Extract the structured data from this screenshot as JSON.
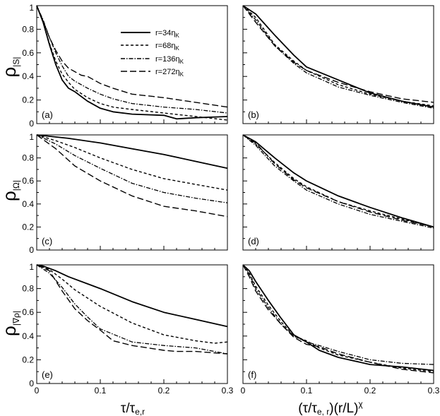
{
  "x_ticks": [
    "0",
    "0.1",
    "0.2",
    "0.3"
  ],
  "y_ticks": [
    "0",
    "0.2",
    "0.4",
    "0.6",
    "0.8",
    "1"
  ],
  "xlabel_left": {
    "main": "τ/τ",
    "sub": "e,r"
  },
  "xlabel_right": {
    "main": "(τ/τ",
    "sub": "e, r",
    "tail": ")(r/L)",
    "sup": "χ"
  },
  "row_ylabels": [
    {
      "main": "ρ",
      "sub": "|S|"
    },
    {
      "main": "ρ",
      "sub": "|Ω|"
    },
    {
      "main": "ρ",
      "sub": "|∇ρ|"
    }
  ],
  "legend": {
    "location": "top-right of panel (a)",
    "entries": [
      {
        "label": "r=34η",
        "sub": "K",
        "dash": "solid"
      },
      {
        "label": "r=68η",
        "sub": "K",
        "dash": "dash"
      },
      {
        "label": "r=136η",
        "sub": "K",
        "dash": "dashdot"
      },
      {
        "label": "r=272η",
        "sub": "K",
        "dash": "longdash"
      }
    ]
  },
  "chart_data": [
    {
      "type": "line",
      "panel": "(a)",
      "xlim": [
        0,
        0.3
      ],
      "ylim": [
        0,
        1
      ],
      "xlabel": "τ/τe,r",
      "ylabel": "ρ|S|",
      "series": [
        {
          "name": "r=34ηK",
          "x": [
            0,
            0.01,
            0.02,
            0.03,
            0.04,
            0.05,
            0.06,
            0.08,
            0.1,
            0.12,
            0.15,
            0.2,
            0.22,
            0.25,
            0.3
          ],
          "y": [
            1,
            0.86,
            0.67,
            0.5,
            0.37,
            0.3,
            0.27,
            0.19,
            0.13,
            0.1,
            0.08,
            0.07,
            0.04,
            0.05,
            0.06
          ]
        },
        {
          "name": "r=68ηK",
          "x": [
            0,
            0.01,
            0.02,
            0.03,
            0.04,
            0.05,
            0.06,
            0.08,
            0.1,
            0.12,
            0.15,
            0.2,
            0.25,
            0.3
          ],
          "y": [
            1,
            0.86,
            0.68,
            0.53,
            0.42,
            0.35,
            0.29,
            0.22,
            0.17,
            0.14,
            0.12,
            0.09,
            0.06,
            0.03
          ]
        },
        {
          "name": "r=136ηK",
          "x": [
            0,
            0.01,
            0.02,
            0.03,
            0.04,
            0.05,
            0.06,
            0.08,
            0.1,
            0.12,
            0.15,
            0.2,
            0.25,
            0.3
          ],
          "y": [
            1,
            0.88,
            0.73,
            0.6,
            0.49,
            0.4,
            0.36,
            0.3,
            0.25,
            0.21,
            0.17,
            0.14,
            0.12,
            0.09
          ]
        },
        {
          "name": "r=272ηK",
          "x": [
            0,
            0.01,
            0.02,
            0.03,
            0.04,
            0.05,
            0.06,
            0.07,
            0.08,
            0.1,
            0.12,
            0.15,
            0.2,
            0.25,
            0.3
          ],
          "y": [
            1,
            0.87,
            0.73,
            0.62,
            0.53,
            0.47,
            0.44,
            0.41,
            0.4,
            0.34,
            0.3,
            0.25,
            0.22,
            0.18,
            0.14
          ]
        }
      ]
    },
    {
      "type": "line",
      "panel": "(b)",
      "xlim": [
        0,
        0.3
      ],
      "ylim": [
        0,
        1
      ],
      "xlabel": "(τ/τe, r)(r/L)χ",
      "ylabel": "ρ|S|",
      "series": [
        {
          "name": "r=34ηK",
          "x": [
            0,
            0.02,
            0.05,
            0.08,
            0.1,
            0.15,
            0.2,
            0.25,
            0.3
          ],
          "y": [
            1,
            0.93,
            0.75,
            0.58,
            0.48,
            0.37,
            0.26,
            0.19,
            0.14
          ]
        },
        {
          "name": "r=68ηK",
          "x": [
            0,
            0.02,
            0.05,
            0.08,
            0.1,
            0.15,
            0.2,
            0.25,
            0.3
          ],
          "y": [
            1,
            0.9,
            0.67,
            0.53,
            0.45,
            0.33,
            0.25,
            0.19,
            0.15
          ]
        },
        {
          "name": "r=136ηK",
          "x": [
            0,
            0.02,
            0.05,
            0.08,
            0.1,
            0.15,
            0.2,
            0.25,
            0.3
          ],
          "y": [
            1,
            0.88,
            0.66,
            0.51,
            0.43,
            0.31,
            0.24,
            0.18,
            0.13
          ]
        },
        {
          "name": "r=272ηK",
          "x": [
            0,
            0.02,
            0.05,
            0.08,
            0.1,
            0.15,
            0.2,
            0.25,
            0.3
          ],
          "y": [
            1,
            0.86,
            0.66,
            0.52,
            0.45,
            0.35,
            0.27,
            0.21,
            0.18
          ]
        }
      ]
    },
    {
      "type": "line",
      "panel": "(c)",
      "xlim": [
        0,
        0.3
      ],
      "ylim": [
        0,
        1
      ],
      "xlabel": "τ/τe,r",
      "ylabel": "ρ|Ω|",
      "series": [
        {
          "name": "r=34ηK",
          "x": [
            0,
            0.05,
            0.1,
            0.15,
            0.2,
            0.25,
            0.3
          ],
          "y": [
            1,
            0.97,
            0.93,
            0.88,
            0.83,
            0.77,
            0.71
          ]
        },
        {
          "name": "r=68ηK",
          "x": [
            0,
            0.03,
            0.06,
            0.1,
            0.15,
            0.2,
            0.25,
            0.3
          ],
          "y": [
            1,
            0.95,
            0.89,
            0.8,
            0.7,
            0.62,
            0.57,
            0.52
          ]
        },
        {
          "name": "r=136ηK",
          "x": [
            0,
            0.03,
            0.06,
            0.1,
            0.15,
            0.2,
            0.25,
            0.3
          ],
          "y": [
            1,
            0.92,
            0.82,
            0.71,
            0.58,
            0.5,
            0.45,
            0.41
          ]
        },
        {
          "name": "r=272ηK",
          "x": [
            0,
            0.03,
            0.06,
            0.1,
            0.15,
            0.2,
            0.25,
            0.3
          ],
          "y": [
            1,
            0.88,
            0.73,
            0.6,
            0.47,
            0.38,
            0.34,
            0.29
          ]
        }
      ]
    },
    {
      "type": "line",
      "panel": "(d)",
      "xlim": [
        0,
        0.3
      ],
      "ylim": [
        0,
        1
      ],
      "xlabel": "(τ/τe, r)(r/L)χ",
      "ylabel": "ρ|Ω|",
      "series": [
        {
          "name": "r=34ηK",
          "x": [
            0,
            0.02,
            0.05,
            0.08,
            0.1,
            0.15,
            0.2,
            0.25,
            0.3
          ],
          "y": [
            1,
            0.94,
            0.8,
            0.67,
            0.6,
            0.47,
            0.37,
            0.28,
            0.2
          ]
        },
        {
          "name": "r=68ηK",
          "x": [
            0,
            0.02,
            0.05,
            0.08,
            0.1,
            0.15,
            0.2,
            0.25,
            0.3
          ],
          "y": [
            1,
            0.92,
            0.76,
            0.62,
            0.55,
            0.42,
            0.34,
            0.27,
            0.2
          ]
        },
        {
          "name": "r=136ηK",
          "x": [
            0,
            0.02,
            0.05,
            0.08,
            0.1,
            0.15,
            0.2,
            0.25,
            0.3
          ],
          "y": [
            1,
            0.91,
            0.73,
            0.6,
            0.52,
            0.4,
            0.31,
            0.25,
            0.19
          ]
        },
        {
          "name": "r=272ηK",
          "x": [
            0,
            0.02,
            0.05,
            0.08,
            0.1,
            0.15,
            0.2,
            0.25,
            0.3
          ],
          "y": [
            1,
            0.93,
            0.75,
            0.61,
            0.54,
            0.42,
            0.33,
            0.26,
            0.2
          ]
        }
      ]
    },
    {
      "type": "line",
      "panel": "(e)",
      "xlim": [
        0,
        0.3
      ],
      "ylim": [
        0,
        1
      ],
      "xlabel": "τ/τe,r",
      "ylabel": "ρ|∇ρ|",
      "series": [
        {
          "name": "r=34ηK",
          "x": [
            0,
            0.01,
            0.03,
            0.05,
            0.1,
            0.15,
            0.2,
            0.25,
            0.3
          ],
          "y": [
            1,
            0.99,
            0.95,
            0.9,
            0.8,
            0.69,
            0.6,
            0.54,
            0.48
          ]
        },
        {
          "name": "r=68ηK",
          "x": [
            0,
            0.02,
            0.04,
            0.06,
            0.1,
            0.15,
            0.2,
            0.25,
            0.28,
            0.3
          ],
          "y": [
            1,
            0.96,
            0.88,
            0.79,
            0.65,
            0.51,
            0.41,
            0.36,
            0.34,
            0.35
          ]
        },
        {
          "name": "r=136ηK",
          "x": [
            0,
            0.02,
            0.04,
            0.06,
            0.08,
            0.1,
            0.15,
            0.2,
            0.25,
            0.3
          ],
          "y": [
            1,
            0.93,
            0.81,
            0.67,
            0.56,
            0.46,
            0.35,
            0.32,
            0.3,
            0.25
          ]
        },
        {
          "name": "r=272ηK",
          "x": [
            0,
            0.02,
            0.04,
            0.06,
            0.08,
            0.1,
            0.12,
            0.15,
            0.2,
            0.22,
            0.25,
            0.3
          ],
          "y": [
            1,
            0.95,
            0.78,
            0.63,
            0.53,
            0.45,
            0.36,
            0.32,
            0.28,
            0.27,
            0.27,
            0.25
          ]
        }
      ]
    },
    {
      "type": "line",
      "panel": "(f)",
      "xlim": [
        0,
        0.3
      ],
      "ylim": [
        0,
        1
      ],
      "xlabel": "(τ/τe, r)(r/L)χ",
      "ylabel": "ρ|∇ρ|",
      "series": [
        {
          "name": "r=34ηK",
          "x": [
            0,
            0.01,
            0.02,
            0.04,
            0.06,
            0.08,
            0.1,
            0.12,
            0.15,
            0.2,
            0.25,
            0.3
          ],
          "y": [
            1,
            0.95,
            0.86,
            0.7,
            0.55,
            0.41,
            0.35,
            0.28,
            0.22,
            0.16,
            0.14,
            0.11
          ]
        },
        {
          "name": "r=68ηK",
          "x": [
            0,
            0.01,
            0.02,
            0.04,
            0.06,
            0.08,
            0.1,
            0.12,
            0.15,
            0.2,
            0.25,
            0.3
          ],
          "y": [
            1,
            0.93,
            0.82,
            0.66,
            0.52,
            0.4,
            0.36,
            0.3,
            0.24,
            0.18,
            0.13,
            0.1
          ]
        },
        {
          "name": "r=136ηK",
          "x": [
            0,
            0.01,
            0.02,
            0.04,
            0.06,
            0.08,
            0.1,
            0.12,
            0.15,
            0.2,
            0.25,
            0.3
          ],
          "y": [
            1,
            0.92,
            0.8,
            0.64,
            0.5,
            0.4,
            0.35,
            0.32,
            0.27,
            0.2,
            0.17,
            0.16
          ]
        },
        {
          "name": "r=272ηK",
          "x": [
            0,
            0.01,
            0.02,
            0.04,
            0.06,
            0.08,
            0.1,
            0.12,
            0.15,
            0.2,
            0.25,
            0.3
          ],
          "y": [
            1,
            0.9,
            0.78,
            0.62,
            0.5,
            0.39,
            0.33,
            0.31,
            0.25,
            0.18,
            0.12,
            0.09
          ]
        }
      ]
    }
  ]
}
